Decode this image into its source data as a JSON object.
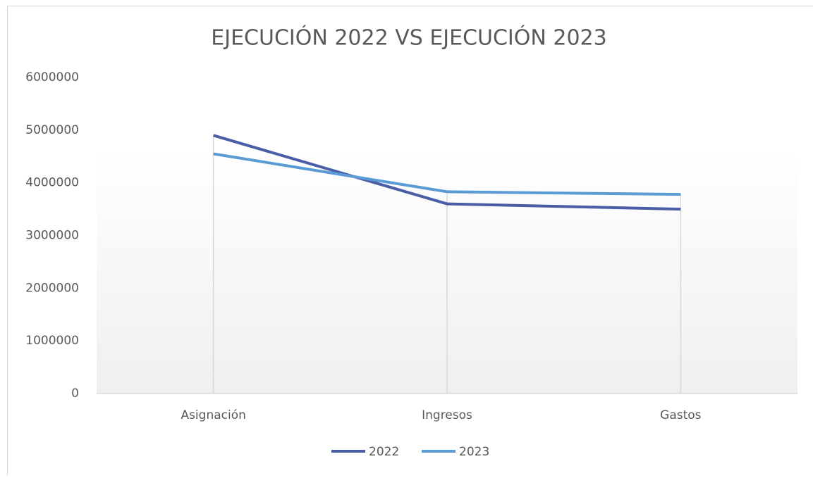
{
  "chart_data": {
    "type": "line",
    "title": "EJECUCIÓN 2022 VS EJECUCIÓN 2023",
    "categories": [
      "Asignación",
      "Ingresos",
      "Gastos"
    ],
    "series": [
      {
        "name": "2022",
        "color": "#4a5ea8",
        "values": [
          4900000,
          3600000,
          3500000
        ]
      },
      {
        "name": "2023",
        "color": "#5b9bd5",
        "values": [
          4550000,
          3830000,
          3780000
        ]
      }
    ],
    "ylim": [
      0,
      6000000
    ],
    "yticks": [
      0,
      1000000,
      2000000,
      3000000,
      4000000,
      5000000,
      6000000
    ],
    "grid": false,
    "drop_lines": true,
    "legend": "bottom"
  }
}
